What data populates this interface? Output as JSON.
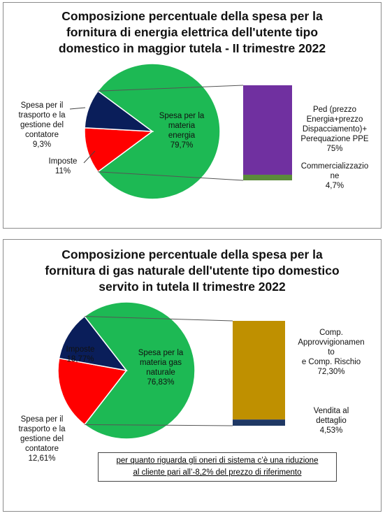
{
  "chart_data": [
    {
      "type": "pie",
      "title": [
        "Composizione percentuale della spesa per la",
        "fornitura di energia elettrica dell'utente tipo",
        "domestico in maggior tutela - II trimestre 2022"
      ],
      "slices": [
        {
          "label_lines": [
            "Spesa per la",
            "materia",
            "energia"
          ],
          "value_text": "79,7%",
          "value": 79.7,
          "color": "#1db954"
        },
        {
          "label_lines": [
            "Imposte"
          ],
          "value_text": "11%",
          "value": 11,
          "color": "#ff0000"
        },
        {
          "label_lines": [
            "Spesa per il",
            "trasporto e la",
            "gestione del",
            "contatore"
          ],
          "value_text": "9,3%",
          "value": 9.3,
          "color": "#0a1e5a"
        }
      ],
      "breakdown": {
        "type": "stacked-bar",
        "segments": [
          {
            "label_lines": [
              "Ped (prezzo",
              "Energia+prezzo",
              "Dispacciamento)+",
              "Perequazione PPE"
            ],
            "value_text": "75%",
            "value": 75,
            "color": "#7030a0"
          },
          {
            "label_lines": [
              "Commercializzazio",
              "ne"
            ],
            "value_text": "4,7%",
            "value": 4.7,
            "color": "#5b8a3a"
          }
        ]
      }
    },
    {
      "type": "pie",
      "title": [
        "Composizione percentuale della spesa per la",
        "fornitura di gas naturale dell'utente tipo domestico",
        "servito in tutela II trimestre 2022"
      ],
      "slices": [
        {
          "label_lines": [
            "Spesa per la",
            "materia gas",
            "naturale"
          ],
          "value_text": "76,83%",
          "value": 76.83,
          "color": "#1db954"
        },
        {
          "label_lines": [
            "Imposte"
          ],
          "value_text": "18,77%",
          "value": 18.77,
          "color": "#ff0000"
        },
        {
          "label_lines": [
            "Spesa per il",
            "trasporto e la",
            "gestione del",
            "contatore"
          ],
          "value_text": "12,61%",
          "value": 12.61,
          "color": "#0a1e5a"
        }
      ],
      "breakdown": {
        "type": "stacked-bar",
        "segments": [
          {
            "label_lines": [
              "Comp.",
              "Approvvigionamen",
              "to",
              "e  Comp. Rischio"
            ],
            "value_text": "72,30%",
            "value": 72.3,
            "color": "#bf9000"
          },
          {
            "label_lines": [
              "Vendita al",
              "dettaglio"
            ],
            "value_text": "4,53%",
            "value": 4.53,
            "color": "#1f3864"
          }
        ]
      }
    }
  ],
  "note": [
    "per quanto riguarda gli oneri di sistema c’è una riduzione",
    "al cliente pari all’-8,2% del prezzo di riferimento"
  ]
}
